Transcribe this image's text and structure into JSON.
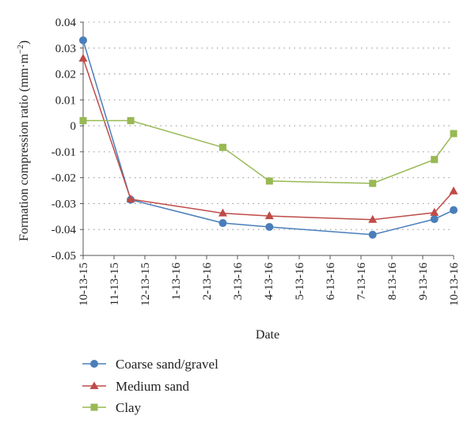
{
  "chart_data": {
    "type": "line",
    "xlabel": "Date",
    "ylabel": "Formation compression ratio (mm·m",
    "ylabel_sup": "−2",
    "ylabel_close": ")",
    "ylim": [
      -0.05,
      0.04
    ],
    "y_ticks": [
      0.04,
      0.03,
      0.02,
      0.01,
      0,
      -0.01,
      -0.02,
      -0.03,
      -0.04,
      -0.05
    ],
    "y_tick_labels": [
      "0.04",
      "0.03",
      "0.02",
      "0.01",
      "0",
      "-0.01",
      "-0.02",
      "-0.03",
      "-0.04",
      "-0.05"
    ],
    "x_tick_labels": [
      "10-13-15",
      "11-13-15",
      "12-13-15",
      "1-13-16",
      "2-13-16",
      "3-13-16",
      "4-13-16",
      "5-13-16",
      "6-13-16",
      "7-13-16",
      "8-13-16",
      "9-13-16",
      "10-13-16"
    ],
    "grid": "horizontal dotted",
    "legend_position": "bottom",
    "series": [
      {
        "name": "Coarse sand/gravel",
        "color": "#4a7ebb",
        "marker": "circle",
        "points": [
          [
            "2015-10-13",
            0.033
          ],
          [
            "2015-11-29",
            -0.0285
          ],
          [
            "2016-02-28",
            -0.0375
          ],
          [
            "2016-04-14",
            -0.039
          ],
          [
            "2016-07-25",
            -0.042
          ],
          [
            "2016-09-24",
            -0.036
          ],
          [
            "2016-10-13",
            -0.0325
          ]
        ]
      },
      {
        "name": "Medium sand",
        "color": "#be4b48",
        "marker": "triangle",
        "points": [
          [
            "2015-10-13",
            0.026
          ],
          [
            "2015-11-29",
            -0.0283
          ],
          [
            "2016-02-28",
            -0.0337
          ],
          [
            "2016-04-14",
            -0.0348
          ],
          [
            "2016-07-25",
            -0.0362
          ],
          [
            "2016-09-24",
            -0.0335
          ],
          [
            "2016-10-13",
            -0.0252
          ]
        ]
      },
      {
        "name": "Clay",
        "color": "#98b954",
        "marker": "square",
        "points": [
          [
            "2015-10-13",
            0.002
          ],
          [
            "2015-11-29",
            0.002
          ],
          [
            "2016-02-28",
            -0.0083
          ],
          [
            "2016-04-14",
            -0.0213
          ],
          [
            "2016-07-25",
            -0.0222
          ],
          [
            "2016-09-24",
            -0.013
          ],
          [
            "2016-10-13",
            -0.003
          ]
        ]
      }
    ]
  }
}
